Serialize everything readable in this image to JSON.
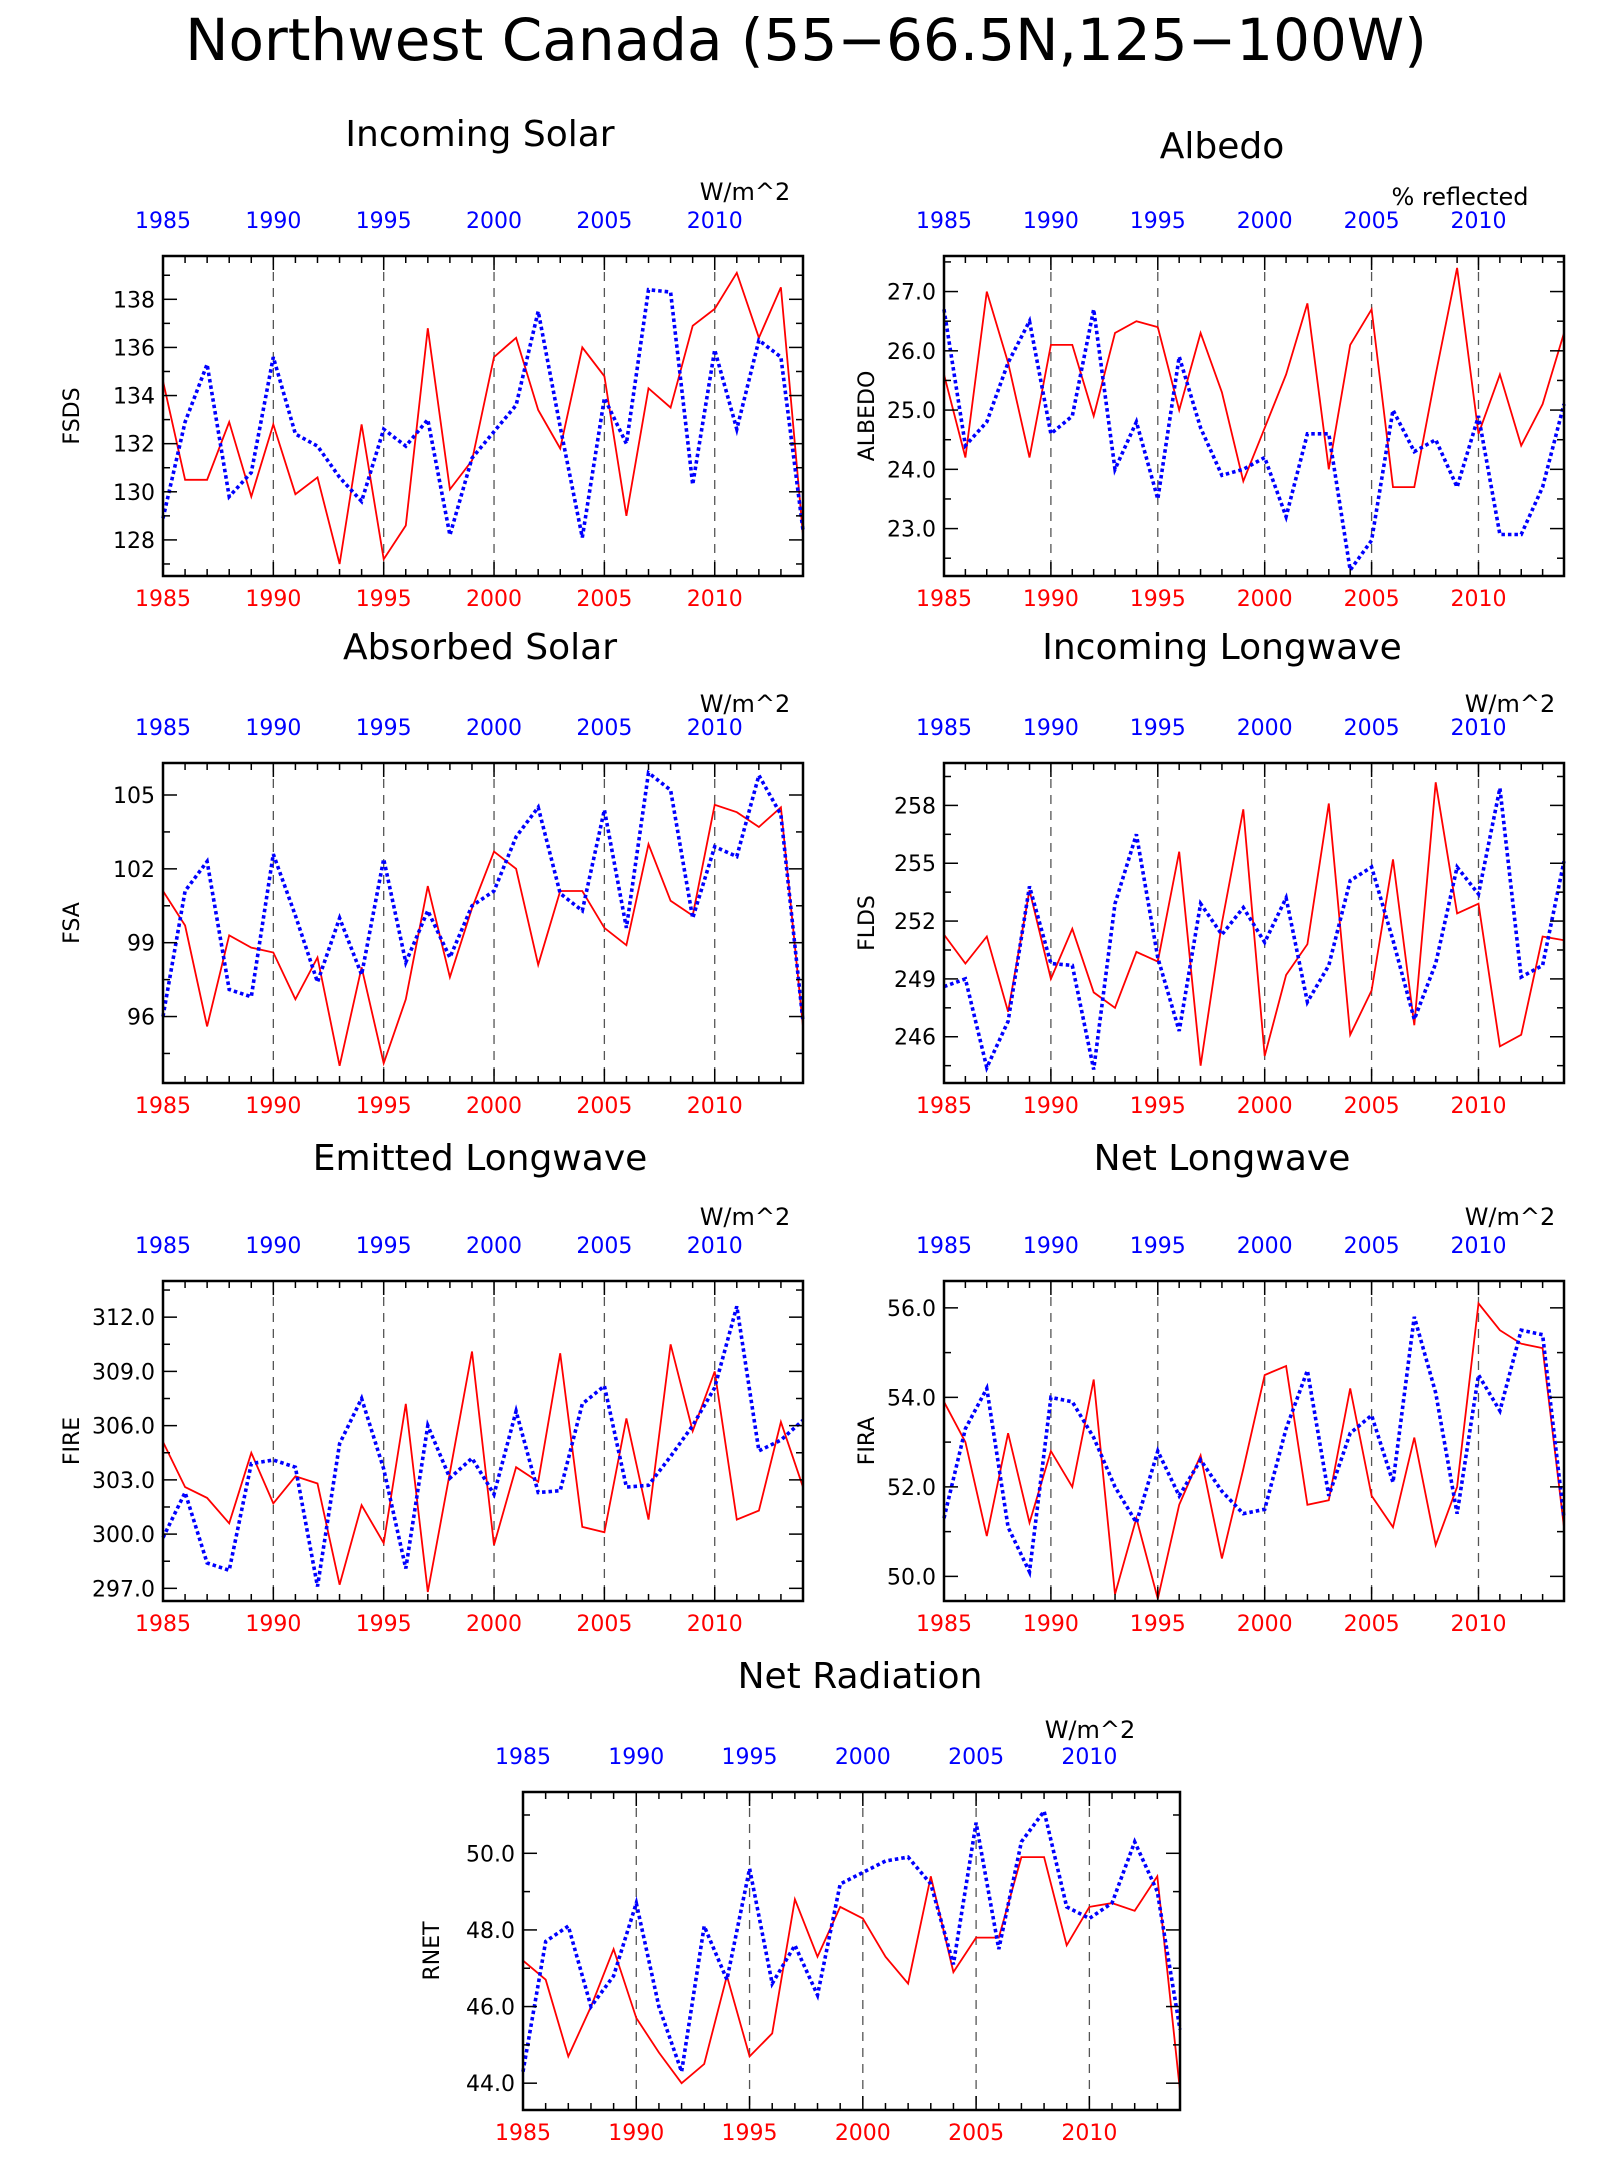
{
  "figure_title": "Northwest Canada (55−66.5N,125−100W)",
  "colors": {
    "red_series": "#ff0000",
    "blue_series": "#0000ff",
    "frame": "#000000",
    "gridline": "#555555"
  },
  "chart_data": [
    {
      "id": "fsds",
      "type": "line",
      "title": "Incoming Solar",
      "ylabel": "FSDS",
      "units": "W/m^2",
      "xlim": [
        1985,
        2014
      ],
      "ylim": [
        126.5,
        139.8
      ],
      "yticks": [
        "128",
        "130",
        "132",
        "134",
        "136",
        "138"
      ],
      "xticks_bottom": [
        "1985",
        "1990",
        "1995",
        "2000",
        "2005",
        "2010"
      ],
      "xticks_top": [
        "1985",
        "1990",
        "1995",
        "2000",
        "2005",
        "2010"
      ],
      "x": [
        1985,
        1986,
        1987,
        1988,
        1989,
        1990,
        1991,
        1992,
        1993,
        1994,
        1995,
        1996,
        1997,
        1998,
        1999,
        2000,
        2001,
        2002,
        2003,
        2004,
        2005,
        2006,
        2007,
        2008,
        2009,
        2010,
        2011,
        2012,
        2013,
        2014
      ],
      "series": [
        {
          "color": "#ff0000",
          "style": "solid",
          "values": [
            134.6,
            130.5,
            130.5,
            132.9,
            129.8,
            132.8,
            129.9,
            130.6,
            127.0,
            132.8,
            127.2,
            128.6,
            136.8,
            130.1,
            131.3,
            135.6,
            136.4,
            133.4,
            131.8,
            136.0,
            134.8,
            129.0,
            134.3,
            133.5,
            136.9,
            137.6,
            139.1,
            136.4,
            138.5,
            128.2
          ]
        },
        {
          "color": "#0000ff",
          "style": "dotted",
          "values": [
            128.9,
            132.9,
            135.3,
            129.8,
            130.8,
            135.6,
            132.4,
            131.9,
            130.6,
            129.6,
            132.6,
            131.9,
            133.0,
            128.2,
            131.4,
            132.5,
            133.6,
            137.5,
            132.7,
            128.1,
            133.9,
            132.0,
            138.4,
            138.3,
            130.3,
            135.9,
            132.6,
            136.3,
            135.6,
            128.4
          ]
        }
      ]
    },
    {
      "id": "albedo",
      "type": "line",
      "title": "Albedo",
      "ylabel": "ALBEDO",
      "units": "% reflected",
      "xlim": [
        1985,
        2014
      ],
      "ylim": [
        22.2,
        27.6
      ],
      "yticks": [
        "23.0",
        "24.0",
        "25.0",
        "26.0",
        "27.0"
      ],
      "xticks_bottom": [
        "1985",
        "1990",
        "1995",
        "2000",
        "2005",
        "2010"
      ],
      "xticks_top": [
        "1985",
        "1990",
        "1995",
        "2000",
        "2005",
        "2010"
      ],
      "x": [
        1985,
        1986,
        1987,
        1988,
        1989,
        1990,
        1991,
        1992,
        1993,
        1994,
        1995,
        1996,
        1997,
        1998,
        1999,
        2000,
        2001,
        2002,
        2003,
        2004,
        2005,
        2006,
        2007,
        2008,
        2009,
        2010,
        2011,
        2012,
        2013,
        2014
      ],
      "series": [
        {
          "color": "#ff0000",
          "style": "solid",
          "values": [
            25.6,
            24.2,
            27.0,
            25.8,
            24.2,
            26.1,
            26.1,
            24.9,
            26.3,
            26.5,
            26.4,
            25.0,
            26.3,
            25.3,
            23.8,
            24.7,
            25.6,
            26.8,
            24.0,
            26.1,
            26.7,
            23.7,
            23.7,
            25.6,
            27.4,
            24.6,
            25.6,
            24.4,
            25.1,
            26.3
          ]
        },
        {
          "color": "#0000ff",
          "style": "dotted",
          "values": [
            26.7,
            24.4,
            24.8,
            25.8,
            26.5,
            24.6,
            24.9,
            26.7,
            24.0,
            24.8,
            23.5,
            25.9,
            24.7,
            23.9,
            24.0,
            24.2,
            23.2,
            24.6,
            24.6,
            22.3,
            22.8,
            25.0,
            24.3,
            24.5,
            23.7,
            24.9,
            22.9,
            22.9,
            23.7,
            25.1
          ]
        }
      ]
    },
    {
      "id": "fsa",
      "type": "line",
      "title": "Absorbed Solar",
      "ylabel": "FSA",
      "units": "W/m^2",
      "xlim": [
        1985,
        2014
      ],
      "ylim": [
        93.3,
        106.3
      ],
      "yticks": [
        "96",
        "99",
        "102",
        "105"
      ],
      "xticks_bottom": [
        "1985",
        "1990",
        "1995",
        "2000",
        "2005",
        "2010"
      ],
      "xticks_top": [
        "1985",
        "1990",
        "1995",
        "2000",
        "2005",
        "2010"
      ],
      "x": [
        1985,
        1986,
        1987,
        1988,
        1989,
        1990,
        1991,
        1992,
        1993,
        1994,
        1995,
        1996,
        1997,
        1998,
        1999,
        2000,
        2001,
        2002,
        2003,
        2004,
        2005,
        2006,
        2007,
        2008,
        2009,
        2010,
        2011,
        2012,
        2013,
        2014
      ],
      "series": [
        {
          "color": "#ff0000",
          "style": "solid",
          "values": [
            101.1,
            99.7,
            95.6,
            99.3,
            98.8,
            98.6,
            96.7,
            98.4,
            94.0,
            98.0,
            94.1,
            96.7,
            101.3,
            97.6,
            100.4,
            102.7,
            102.0,
            98.1,
            101.1,
            101.1,
            99.6,
            98.9,
            103.0,
            100.7,
            100.1,
            104.6,
            104.3,
            103.7,
            104.5,
            95.6
          ]
        },
        {
          "color": "#0000ff",
          "style": "dotted",
          "values": [
            96.0,
            101.1,
            102.3,
            97.1,
            96.8,
            102.6,
            100.1,
            97.4,
            100.0,
            97.7,
            102.4,
            98.2,
            100.3,
            98.4,
            100.5,
            101.1,
            103.3,
            104.5,
            101.0,
            100.3,
            104.4,
            99.6,
            105.9,
            105.2,
            100.0,
            102.9,
            102.5,
            105.8,
            104.2,
            95.8
          ]
        }
      ]
    },
    {
      "id": "flds",
      "type": "line",
      "title": "Incoming Longwave",
      "ylabel": "FLDS",
      "units": "W/m^2",
      "xlim": [
        1985,
        2014
      ],
      "ylim": [
        243.6,
        260.2
      ],
      "yticks": [
        "246",
        "249",
        "252",
        "255",
        "258"
      ],
      "xticks_bottom": [
        "1985",
        "1990",
        "1995",
        "2000",
        "2005",
        "2010"
      ],
      "xticks_top": [
        "1985",
        "1990",
        "1995",
        "2000",
        "2005",
        "2010"
      ],
      "x": [
        1985,
        1986,
        1987,
        1988,
        1989,
        1990,
        1991,
        1992,
        1993,
        1994,
        1995,
        1996,
        1997,
        1998,
        1999,
        2000,
        2001,
        2002,
        2003,
        2004,
        2005,
        2006,
        2007,
        2008,
        2009,
        2010,
        2011,
        2012,
        2013,
        2014
      ],
      "series": [
        {
          "color": "#ff0000",
          "style": "solid",
          "values": [
            251.3,
            249.8,
            251.2,
            247.3,
            253.6,
            249.0,
            251.6,
            248.3,
            247.5,
            250.4,
            249.9,
            255.6,
            244.5,
            251.9,
            257.8,
            245.0,
            249.2,
            250.8,
            258.1,
            246.1,
            248.4,
            255.2,
            246.6,
            259.2,
            252.4,
            252.9,
            245.5,
            246.1,
            251.2,
            251.0
          ]
        },
        {
          "color": "#0000ff",
          "style": "dotted",
          "values": [
            248.6,
            249.0,
            244.4,
            246.8,
            253.8,
            249.8,
            249.7,
            244.3,
            252.9,
            256.5,
            250.1,
            246.3,
            252.9,
            251.3,
            252.7,
            250.9,
            253.2,
            247.8,
            249.7,
            254.1,
            254.8,
            251.0,
            246.9,
            249.8,
            254.8,
            253.4,
            258.9,
            249.1,
            249.7,
            255.1
          ]
        }
      ]
    },
    {
      "id": "fire",
      "type": "line",
      "title": "Emitted Longwave",
      "ylabel": "FIRE",
      "units": "W/m^2",
      "xlim": [
        1985,
        2014
      ],
      "ylim": [
        296.3,
        314.0
      ],
      "yticks": [
        "297.0",
        "300.0",
        "303.0",
        "306.0",
        "309.0",
        "312.0"
      ],
      "xticks_bottom": [
        "1985",
        "1990",
        "1995",
        "2000",
        "2005",
        "2010"
      ],
      "xticks_top": [
        "1985",
        "1990",
        "1995",
        "2000",
        "2005",
        "2010"
      ],
      "x": [
        1985,
        1986,
        1987,
        1988,
        1989,
        1990,
        1991,
        1992,
        1993,
        1994,
        1995,
        1996,
        1997,
        1998,
        1999,
        2000,
        2001,
        2002,
        2003,
        2004,
        2005,
        2006,
        2007,
        2008,
        2009,
        2010,
        2011,
        2012,
        2013,
        2014
      ],
      "series": [
        {
          "color": "#ff0000",
          "style": "solid",
          "values": [
            305.1,
            302.6,
            302.0,
            300.6,
            304.5,
            301.7,
            303.2,
            302.8,
            297.2,
            301.6,
            299.5,
            307.2,
            296.8,
            303.4,
            310.1,
            299.4,
            303.7,
            302.9,
            310.0,
            300.4,
            300.1,
            306.4,
            300.8,
            310.5,
            305.7,
            309.0,
            300.8,
            301.3,
            306.2,
            302.6
          ]
        },
        {
          "color": "#0000ff",
          "style": "dotted",
          "values": [
            299.8,
            302.3,
            298.4,
            298.0,
            303.9,
            304.1,
            303.7,
            297.1,
            305.0,
            307.5,
            303.6,
            298.1,
            306.0,
            303.1,
            304.2,
            302.2,
            306.8,
            302.3,
            302.4,
            307.2,
            308.2,
            302.6,
            302.7,
            304.3,
            306.0,
            308.1,
            312.6,
            304.6,
            305.2,
            306.3
          ]
        }
      ]
    },
    {
      "id": "fira",
      "type": "line",
      "title": "Net Longwave",
      "ylabel": "FIRA",
      "units": "W/m^2",
      "xlim": [
        1985,
        2014
      ],
      "ylim": [
        49.45,
        56.6
      ],
      "yticks": [
        "50.0",
        "52.0",
        "54.0",
        "56.0"
      ],
      "xticks_bottom": [
        "1985",
        "1990",
        "1995",
        "2000",
        "2005",
        "2010"
      ],
      "xticks_top": [
        "1985",
        "1990",
        "1995",
        "2000",
        "2005",
        "2010"
      ],
      "x": [
        1985,
        1986,
        1987,
        1988,
        1989,
        1990,
        1991,
        1992,
        1993,
        1994,
        1995,
        1996,
        1997,
        1998,
        1999,
        2000,
        2001,
        2002,
        2003,
        2004,
        2005,
        2006,
        2007,
        2008,
        2009,
        2010,
        2011,
        2012,
        2013,
        2014
      ],
      "series": [
        {
          "color": "#ff0000",
          "style": "solid",
          "values": [
            53.9,
            53.0,
            50.9,
            53.2,
            51.2,
            52.8,
            52.0,
            54.4,
            49.6,
            51.3,
            49.5,
            51.6,
            52.7,
            50.4,
            52.4,
            54.5,
            54.7,
            51.6,
            51.7,
            54.2,
            51.8,
            51.1,
            53.1,
            50.7,
            52.0,
            56.1,
            55.5,
            55.2,
            55.1,
            51.1
          ]
        },
        {
          "color": "#0000ff",
          "style": "dotted",
          "values": [
            51.3,
            53.3,
            54.2,
            51.1,
            50.1,
            54.0,
            53.9,
            53.1,
            52.0,
            51.2,
            52.8,
            51.8,
            52.6,
            51.9,
            51.4,
            51.5,
            53.3,
            54.6,
            51.8,
            53.2,
            53.6,
            52.1,
            55.8,
            54.1,
            51.4,
            54.5,
            53.7,
            55.5,
            55.4,
            51.3
          ]
        }
      ]
    },
    {
      "id": "rnet",
      "type": "line",
      "title": "Net Radiation",
      "ylabel": "RNET",
      "units": "W/m^2",
      "xlim": [
        1985,
        2014
      ],
      "ylim": [
        43.3,
        51.6
      ],
      "yticks": [
        "44.0",
        "46.0",
        "48.0",
        "50.0"
      ],
      "xticks_bottom": [
        "1985",
        "1990",
        "1995",
        "2000",
        "2005",
        "2010"
      ],
      "xticks_top": [
        "1985",
        "1990",
        "1995",
        "2000",
        "2005",
        "2010"
      ],
      "x": [
        1985,
        1986,
        1987,
        1988,
        1989,
        1990,
        1991,
        1992,
        1993,
        1994,
        1995,
        1996,
        1997,
        1998,
        1999,
        2000,
        2001,
        2002,
        2003,
        2004,
        2005,
        2006,
        2007,
        2008,
        2009,
        2010,
        2011,
        2012,
        2013,
        2014
      ],
      "series": [
        {
          "color": "#ff0000",
          "style": "solid",
          "values": [
            47.2,
            46.7,
            44.7,
            46.0,
            47.5,
            45.7,
            44.8,
            44.0,
            44.5,
            46.8,
            44.7,
            45.3,
            48.8,
            47.3,
            48.6,
            48.3,
            47.3,
            46.6,
            49.4,
            46.9,
            47.8,
            47.8,
            49.9,
            49.9,
            47.6,
            48.6,
            48.7,
            48.5,
            49.4,
            43.8
          ]
        },
        {
          "color": "#0000ff",
          "style": "dotted",
          "values": [
            44.3,
            47.7,
            48.1,
            46.0,
            46.8,
            48.7,
            46.0,
            44.3,
            48.1,
            46.7,
            49.6,
            46.6,
            47.6,
            46.3,
            49.2,
            49.5,
            49.8,
            49.9,
            49.2,
            47.1,
            50.8,
            47.5,
            50.3,
            51.1,
            48.6,
            48.3,
            48.7,
            50.3,
            49.0,
            45.4
          ]
        }
      ]
    }
  ]
}
